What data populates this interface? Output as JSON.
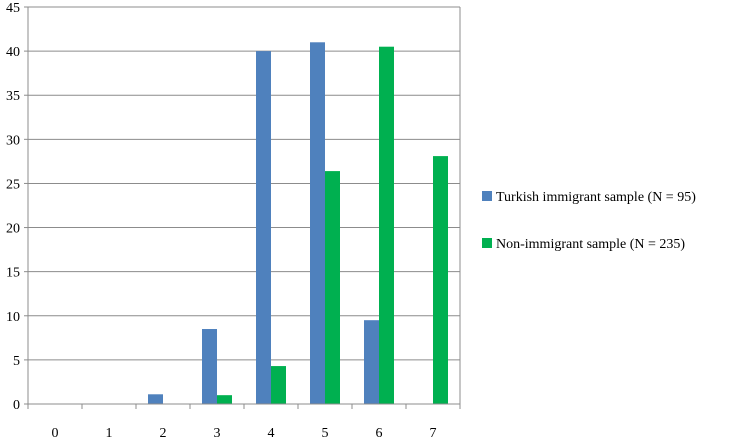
{
  "chart_data": {
    "type": "bar",
    "categories": [
      "0",
      "1",
      "2",
      "3",
      "4",
      "5",
      "6",
      "7"
    ],
    "series": [
      {
        "name": "Turkish immigrant sample (N = 95)",
        "values": [
          0,
          0,
          1.1,
          8.5,
          40.0,
          41.0,
          9.5,
          0
        ],
        "color": "#4f81bd"
      },
      {
        "name": "Non-immigrant sample (N = 235)",
        "values": [
          0,
          0,
          0,
          1.0,
          4.3,
          26.4,
          40.5,
          28.1
        ],
        "color": "#00b050"
      }
    ],
    "ylim": [
      0,
      45
    ],
    "yticks": [
      0,
      5,
      10,
      15,
      20,
      25,
      30,
      35,
      40,
      45
    ],
    "title": "",
    "xlabel": "",
    "ylabel": "",
    "grid": true,
    "legend_position": "right"
  }
}
